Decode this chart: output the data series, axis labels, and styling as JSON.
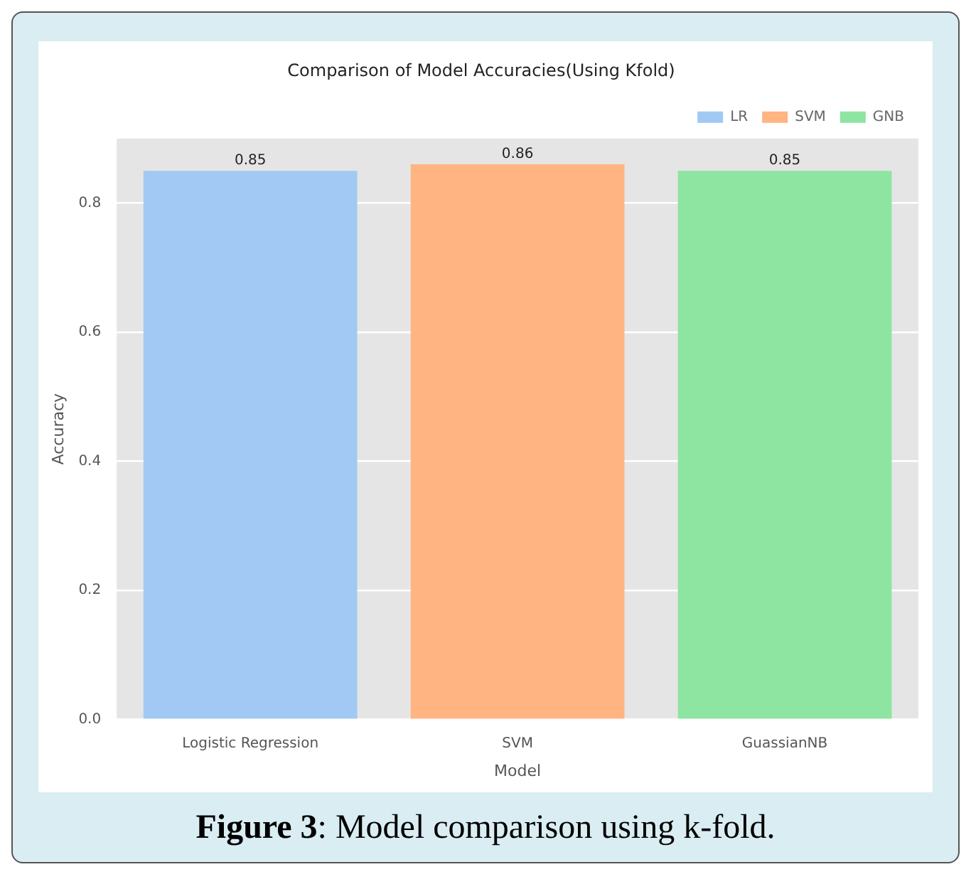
{
  "chart_data": {
    "type": "bar",
    "title": "Comparison of Model Accuracies(Using Kfold)",
    "xlabel": "Model",
    "ylabel": "Accuracy",
    "categories": [
      "Logistic Regression",
      "SVM",
      "GuassianNB"
    ],
    "series": [
      {
        "name": "LR",
        "color": "#a1c9f4",
        "values": [
          0.85,
          null,
          null
        ]
      },
      {
        "name": "SVM",
        "color": "#ffb482",
        "values": [
          null,
          0.86,
          null
        ]
      },
      {
        "name": "GNB",
        "color": "#8de5a1",
        "values": [
          null,
          null,
          0.85
        ]
      }
    ],
    "ylim": [
      0,
      0.9
    ],
    "yticks": [
      {
        "value": 0,
        "label": "0.0"
      },
      {
        "value": 0.2,
        "label": "0.2"
      },
      {
        "value": 0.4,
        "label": "0.4"
      },
      {
        "value": 0.6,
        "label": "0.6"
      },
      {
        "value": 0.8,
        "label": "0.8"
      }
    ],
    "grid": "y",
    "legend": "top right",
    "data_labels": true,
    "annotations": [
      "Figure 3: Model comparison using k-fold."
    ]
  }
}
